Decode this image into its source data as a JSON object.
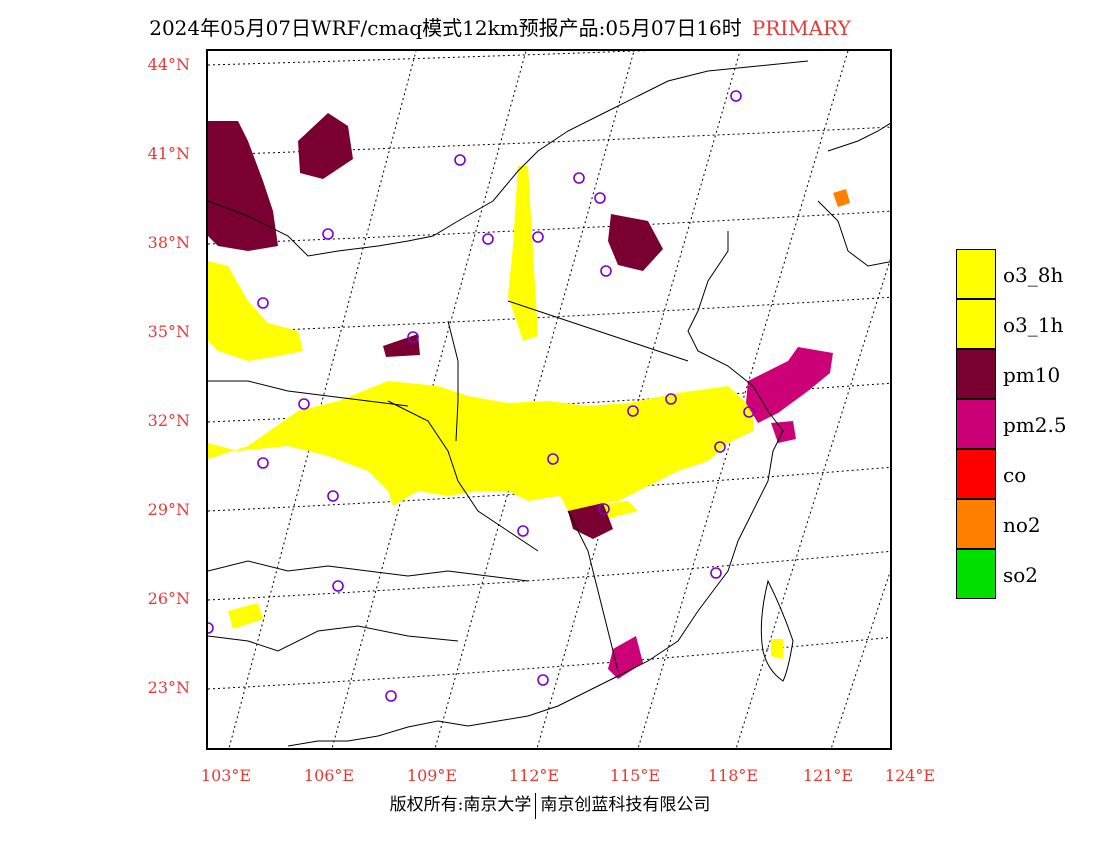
{
  "title": {
    "main": "2024年05月07日WRF/cmaq模式12km预报产品:05月07日16时",
    "tag": "PRIMARY"
  },
  "map": {
    "lat_labels": [
      "44°N",
      "41°N",
      "38°N",
      "35°N",
      "32°N",
      "29°N",
      "26°N",
      "23°N"
    ],
    "lon_labels": [
      "103°E",
      "106°E",
      "109°E",
      "112°E",
      "115°E",
      "118°E",
      "121°E",
      "124°E"
    ],
    "grid": "dotted",
    "colors": {
      "o3": "#ffff00",
      "pm10": "#7b0032",
      "pm25": "#cc0077",
      "no2": "#ff7f00",
      "station": "#7a00cc",
      "boundary": "#000000"
    }
  },
  "legend": [
    {
      "label": "o3_8h",
      "color": "#ffff00"
    },
    {
      "label": "o3_1h",
      "color": "#ffff00"
    },
    {
      "label": "pm10",
      "color": "#7b0032"
    },
    {
      "label": "pm2.5",
      "color": "#cc0077"
    },
    {
      "label": "co",
      "color": "#ff0000"
    },
    {
      "label": "no2",
      "color": "#ff7f00"
    },
    {
      "label": "so2",
      "color": "#00e000"
    }
  ],
  "footer": {
    "left": "版权所有:南京大学",
    "right": "南京创蓝科技有限公司"
  }
}
